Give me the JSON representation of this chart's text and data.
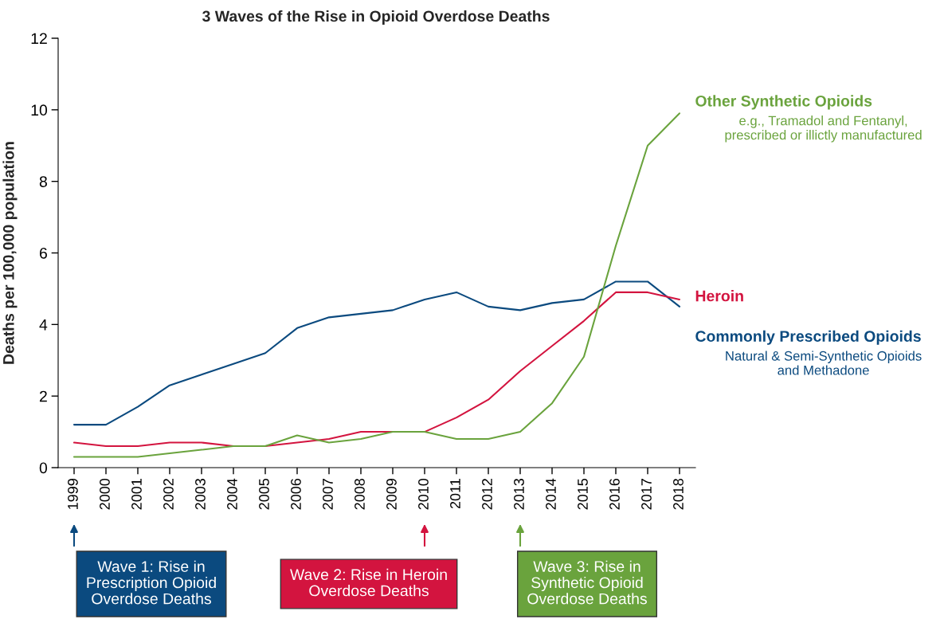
{
  "chart_data": {
    "type": "line",
    "title": "3 Waves of the Rise in Opioid Overdose Deaths",
    "ylabel": "Deaths per 100,000 population",
    "categories": [
      "1999",
      "2000",
      "2001",
      "2002",
      "2003",
      "2004",
      "2005",
      "2006",
      "2007",
      "2008",
      "2009",
      "2010",
      "2011",
      "2012",
      "2013",
      "2014",
      "2015",
      "2016",
      "2017",
      "2018"
    ],
    "series": [
      {
        "name": "Commonly Prescribed Opioids",
        "color": "#0b4a7f",
        "values": [
          1.2,
          1.2,
          1.7,
          2.3,
          2.6,
          2.9,
          3.2,
          3.9,
          4.2,
          4.3,
          4.4,
          4.7,
          4.9,
          4.5,
          4.4,
          4.6,
          4.7,
          5.2,
          5.2,
          4.5
        ]
      },
      {
        "name": "Heroin",
        "color": "#d3143f",
        "values": [
          0.7,
          0.6,
          0.6,
          0.7,
          0.7,
          0.6,
          0.6,
          0.7,
          0.8,
          1.0,
          1.0,
          1.0,
          1.4,
          1.9,
          2.7,
          3.4,
          4.1,
          4.9,
          4.9,
          4.7
        ]
      },
      {
        "name": "Other Synthetic Opioids",
        "color": "#6aa33d",
        "values": [
          0.3,
          0.3,
          0.3,
          0.4,
          0.5,
          0.6,
          0.6,
          0.9,
          0.7,
          0.8,
          1.0,
          1.0,
          0.8,
          0.8,
          1.0,
          1.8,
          3.1,
          6.2,
          9.0,
          9.9
        ]
      }
    ],
    "ylim": [
      0,
      12
    ],
    "yticks": [
      0,
      2,
      4,
      6,
      8,
      10,
      12
    ],
    "grid": false,
    "annotations": [
      "Natural & Semi-Synthetic Opioids\nand Methadone",
      "e.g., Tramadol and Fentanyl,\nprescribed or illictly manufactured",
      "Wave 1: Rise in\nPrescription Opioid\nOverdose Deaths",
      "Wave 2: Rise in Heroin\nOverdose Deaths",
      "Wave 3: Rise in\nSynthetic Opioid\nOverdose Deaths"
    ]
  }
}
